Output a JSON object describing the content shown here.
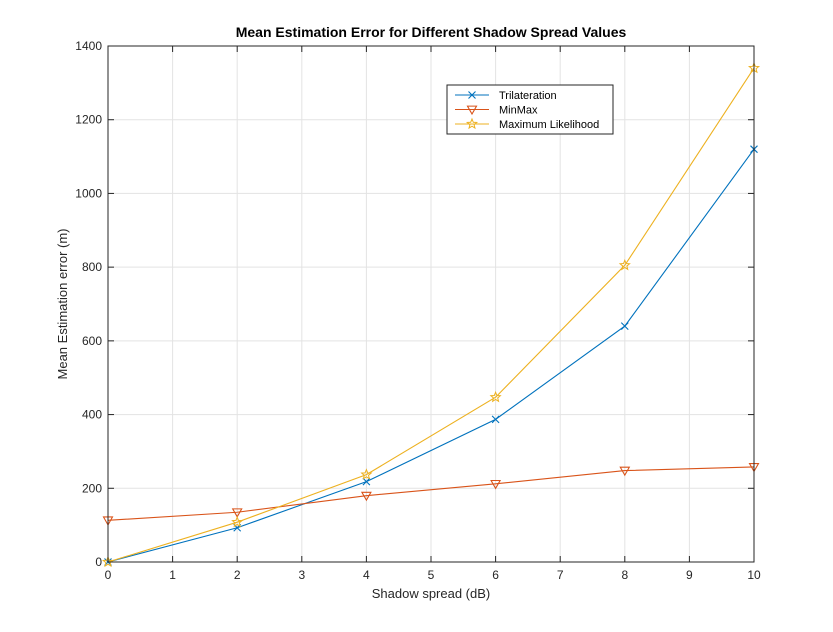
{
  "chart_data": {
    "type": "line",
    "title": "Mean Estimation Error for Different Shadow Spread Values",
    "xlabel": "Shadow spread (dB)",
    "ylabel": "Mean Estimation error (m)",
    "xlim": [
      0,
      10
    ],
    "ylim": [
      0,
      1400
    ],
    "xticks": [
      0,
      1,
      2,
      3,
      4,
      5,
      6,
      7,
      8,
      9,
      10
    ],
    "yticks": [
      0,
      200,
      400,
      600,
      800,
      1000,
      1200,
      1400
    ],
    "grid": true,
    "legend_position": "top-right",
    "x": [
      0,
      2,
      4,
      6,
      8,
      10
    ],
    "series": [
      {
        "name": "Trilateration",
        "color": "#0072BD",
        "marker": "x",
        "values": [
          0,
          93,
          218,
          387,
          640,
          1120
        ]
      },
      {
        "name": "MinMax",
        "color": "#D95319",
        "marker": "triangle-down",
        "values": [
          113,
          135,
          180,
          212,
          248,
          258
        ]
      },
      {
        "name": "Maximum Likelihood",
        "color": "#EDB120",
        "marker": "star",
        "values": [
          0,
          108,
          237,
          447,
          805,
          1340
        ]
      }
    ]
  }
}
